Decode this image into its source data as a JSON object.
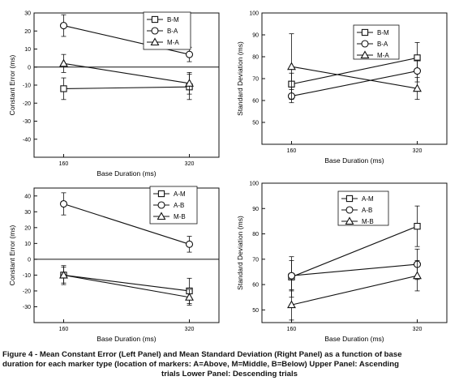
{
  "chart_data": [
    {
      "type": "line",
      "ylabel": "Constant Error (ms)",
      "xlabel": "Base Duration (ms)",
      "x": [
        160,
        320
      ],
      "ylim": [
        -50,
        30
      ],
      "yticks": [
        -40,
        -30,
        -20,
        -10,
        0,
        10,
        20,
        30
      ],
      "ref_line_y": 0,
      "legend_position": "top-right",
      "series": [
        {
          "name": "B-M",
          "marker": "square",
          "values": [
            -12,
            -11
          ],
          "errors": [
            6,
            7
          ]
        },
        {
          "name": "B-A",
          "marker": "circle",
          "values": [
            23,
            7
          ],
          "errors": [
            6,
            4
          ]
        },
        {
          "name": "M-A",
          "marker": "triangle",
          "values": [
            2,
            -9
          ],
          "errors": [
            5,
            6
          ]
        }
      ]
    },
    {
      "type": "line",
      "ylabel": "Standard Deviation (ms)",
      "xlabel": "Base Duration (ms)",
      "x": [
        160,
        320
      ],
      "ylim": [
        40,
        100
      ],
      "yticks": [
        50,
        60,
        70,
        80,
        90,
        100
      ],
      "legend_position": "top-right",
      "series": [
        {
          "name": "B-M",
          "marker": "square",
          "values": [
            67.5,
            79.5
          ],
          "errors": [
            5,
            7
          ]
        },
        {
          "name": "B-A",
          "marker": "circle",
          "values": [
            62,
            73.5
          ],
          "errors": [
            3,
            5
          ]
        },
        {
          "name": "M-A",
          "marker": "triangle",
          "values": [
            75.5,
            65.5
          ],
          "errors": [
            15,
            5
          ]
        }
      ]
    },
    {
      "type": "line",
      "ylabel": "Constant Error (ms)",
      "xlabel": "Base Duration (ms)",
      "x": [
        160,
        320
      ],
      "ylim": [
        -40,
        45
      ],
      "yticks": [
        -30,
        -20,
        -10,
        0,
        10,
        20,
        30,
        40
      ],
      "ref_line_y": 0,
      "legend_position": "top-right",
      "series": [
        {
          "name": "A-M",
          "marker": "square",
          "values": [
            -10,
            -20
          ],
          "errors": [
            6,
            8
          ]
        },
        {
          "name": "A-B",
          "marker": "circle",
          "values": [
            35,
            9.5
          ],
          "errors": [
            7,
            5
          ]
        },
        {
          "name": "M-B",
          "marker": "triangle",
          "values": [
            -10,
            -24
          ],
          "errors": [
            5,
            5
          ]
        }
      ]
    },
    {
      "type": "line",
      "ylabel": "Standard Deviation (ms)",
      "xlabel": "Base Duration (ms)",
      "x": [
        160,
        320
      ],
      "ylim": [
        45,
        100
      ],
      "yticks": [
        50,
        60,
        70,
        80,
        90,
        100
      ],
      "legend_position": "top-left",
      "series": [
        {
          "name": "A-M",
          "marker": "square",
          "values": [
            63,
            83
          ],
          "errors": [
            8,
            8
          ]
        },
        {
          "name": "A-B",
          "marker": "circle",
          "values": [
            63.5,
            68
          ],
          "errors": [
            6,
            6
          ]
        },
        {
          "name": "M-B",
          "marker": "triangle",
          "values": [
            52,
            63.5
          ],
          "errors": [
            6,
            6
          ]
        }
      ]
    }
  ],
  "caption": {
    "line1": "Figure 4 -  Mean Constant Error (Left Panel) and Mean Standard Deviation (Right Panel) as a function of base",
    "line2": "duration for each marker type (location of markers:  A=Above, M=Middle, B=Below) Upper Panel: Ascending",
    "line3": "trials Lower Panel: Descending trials"
  }
}
